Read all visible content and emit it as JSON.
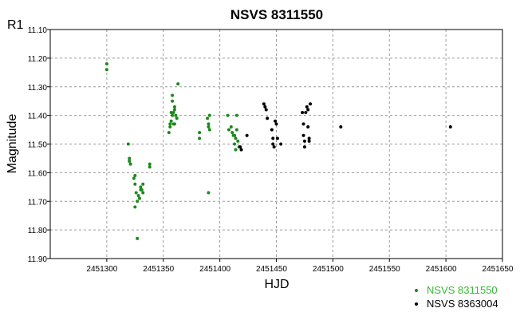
{
  "chart_data": {
    "type": "scatter",
    "title": "NSVS 8311550",
    "corner_label": "R1",
    "xlabel": "HJD",
    "ylabel": "Magnitude",
    "xlim": [
      2451250,
      2451650
    ],
    "ylim": [
      11.1,
      11.9
    ],
    "y_inverted": true,
    "grid": true,
    "grid_style": "dashed",
    "x_ticks": [
      2451300,
      2451350,
      2451400,
      2451450,
      2451500,
      2451550,
      2451600,
      2451650
    ],
    "x_tick_labels": [
      "2451300",
      "2451350",
      "2451400",
      "2451450",
      "2451500",
      "2451550",
      "2451600",
      "2451650"
    ],
    "y_ticks": [
      11.1,
      11.2,
      11.3,
      11.4,
      11.5,
      11.6,
      11.7,
      11.8,
      11.9
    ],
    "y_tick_labels": [
      "11.10",
      "11.20",
      "11.30",
      "11.40",
      "11.50",
      "11.60",
      "11.70",
      "11.80",
      "11.90"
    ],
    "legend_position": "bottom-right",
    "series": [
      {
        "name": "NSVS 8311550",
        "color": "#1a8a1a",
        "legend_text_color": "#33bb33",
        "points": [
          [
            2451300,
            11.22
          ],
          [
            2451300,
            11.24
          ],
          [
            2451319,
            11.5
          ],
          [
            2451320,
            11.55
          ],
          [
            2451320,
            11.56
          ],
          [
            2451321,
            11.57
          ],
          [
            2451324,
            11.62
          ],
          [
            2451325,
            11.61
          ],
          [
            2451325,
            11.64
          ],
          [
            2451325,
            11.72
          ],
          [
            2451326,
            11.67
          ],
          [
            2451327,
            11.7
          ],
          [
            2451327,
            11.83
          ],
          [
            2451328,
            11.68
          ],
          [
            2451329,
            11.69
          ],
          [
            2451330,
            11.65
          ],
          [
            2451330,
            11.66
          ],
          [
            2451331,
            11.66
          ],
          [
            2451332,
            11.67
          ],
          [
            2451332,
            11.64
          ],
          [
            2451338,
            11.57
          ],
          [
            2451338,
            11.58
          ],
          [
            2451355,
            11.46
          ],
          [
            2451356,
            11.43
          ],
          [
            2451356,
            11.44
          ],
          [
            2451357,
            11.39
          ],
          [
            2451357,
            11.42
          ],
          [
            2451358,
            11.33
          ],
          [
            2451358,
            11.35
          ],
          [
            2451358,
            11.4
          ],
          [
            2451359,
            11.43
          ],
          [
            2451359,
            11.39
          ],
          [
            2451360,
            11.38
          ],
          [
            2451360,
            11.37
          ],
          [
            2451360,
            11.43
          ],
          [
            2451361,
            11.4
          ],
          [
            2451362,
            11.41
          ],
          [
            2451363,
            11.29
          ],
          [
            2451382,
            11.46
          ],
          [
            2451382,
            11.48
          ],
          [
            2451389,
            11.41
          ],
          [
            2451390,
            11.44
          ],
          [
            2451390,
            11.43
          ],
          [
            2451390,
            11.67
          ],
          [
            2451391,
            11.45
          ],
          [
            2451391,
            11.4
          ],
          [
            2451407,
            11.4
          ],
          [
            2451408,
            11.45
          ],
          [
            2451410,
            11.44
          ],
          [
            2451411,
            11.46
          ],
          [
            2451412,
            11.47
          ],
          [
            2451413,
            11.47
          ],
          [
            2451413,
            11.5
          ],
          [
            2451414,
            11.48
          ],
          [
            2451414,
            11.52
          ],
          [
            2451415,
            11.45
          ],
          [
            2451415,
            11.4
          ],
          [
            2451416,
            11.49
          ],
          [
            2451417,
            11.51
          ]
        ]
      },
      {
        "name": "NSVS 8363004",
        "color": "#000000",
        "legend_text_color": "#000000",
        "points": [
          [
            2451418,
            11.51
          ],
          [
            2451419,
            11.52
          ],
          [
            2451424,
            11.47
          ],
          [
            2451439,
            11.36
          ],
          [
            2451440,
            11.37
          ],
          [
            2451441,
            11.38
          ],
          [
            2451442,
            11.41
          ],
          [
            2451446,
            11.45
          ],
          [
            2451447,
            11.48
          ],
          [
            2451447,
            11.5
          ],
          [
            2451448,
            11.51
          ],
          [
            2451449,
            11.42
          ],
          [
            2451450,
            11.43
          ],
          [
            2451451,
            11.48
          ],
          [
            2451454,
            11.5
          ],
          [
            2451473,
            11.39
          ],
          [
            2451474,
            11.43
          ],
          [
            2451474,
            11.47
          ],
          [
            2451475,
            11.49
          ],
          [
            2451475,
            11.51
          ],
          [
            2451476,
            11.39
          ],
          [
            2451477,
            11.37
          ],
          [
            2451478,
            11.38
          ],
          [
            2451478,
            11.44
          ],
          [
            2451479,
            11.48
          ],
          [
            2451479,
            11.49
          ],
          [
            2451480,
            11.36
          ],
          [
            2451507,
            11.44
          ],
          [
            2451604,
            11.44
          ]
        ]
      }
    ]
  }
}
